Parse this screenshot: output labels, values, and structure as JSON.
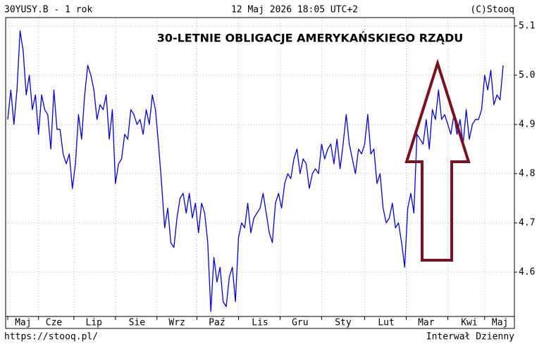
{
  "header": {
    "symbol": "30YUSY.B - 1 rok",
    "datetime": "12 Maj 2026 18:05 UTC+2",
    "copyright": "(C)Stooq"
  },
  "footer": {
    "url": "https://stooq.pl/",
    "interval": "Interwał Dzienny"
  },
  "chart_data": {
    "type": "line",
    "title": "30-LETNIE OBLIGACJE AMERYKAŃSKIEGO RZĄDU",
    "categories": [
      null,
      null,
      null,
      null,
      null,
      "Maj",
      null,
      null,
      null,
      null,
      null,
      null,
      null,
      null,
      null,
      "Cze",
      null,
      null,
      null,
      null,
      null,
      null,
      null,
      null,
      null,
      null,
      null,
      null,
      "Lip",
      null,
      null,
      null,
      null,
      null,
      null,
      null,
      null,
      null,
      null,
      null,
      null,
      null,
      "Sie",
      null,
      null,
      null,
      null,
      null,
      null,
      null,
      null,
      null,
      null,
      null,
      null,
      "Wrz",
      null,
      null,
      null,
      null,
      null,
      null,
      null,
      null,
      null,
      null,
      null,
      null,
      "Paź",
      null,
      null,
      null,
      null,
      null,
      null,
      null,
      null,
      null,
      null,
      null,
      null,
      null,
      "Lis",
      null,
      null,
      null,
      null,
      null,
      null,
      null,
      null,
      null,
      null,
      null,
      null,
      "Gru",
      null,
      null,
      null,
      null,
      null,
      null,
      null,
      null,
      null,
      null,
      null,
      null,
      null,
      "Sty",
      null,
      null,
      null,
      null,
      null,
      null,
      null,
      null,
      null,
      null,
      null,
      null,
      null,
      "Lut",
      null,
      null,
      null,
      null,
      null,
      null,
      null,
      null,
      null,
      null,
      null,
      null,
      "Mar",
      null,
      null,
      null,
      null,
      null,
      null,
      null,
      null,
      null,
      null,
      null,
      null,
      null,
      "Kwi",
      null,
      null,
      null,
      null,
      null,
      null,
      null,
      null,
      null,
      "Maj",
      null
    ],
    "values": [
      4.91,
      4.97,
      4.9,
      4.97,
      5.09,
      5.05,
      4.96,
      5.0,
      4.93,
      4.96,
      4.88,
      4.96,
      4.93,
      4.92,
      4.85,
      4.97,
      4.89,
      4.89,
      4.84,
      4.82,
      4.84,
      4.77,
      4.82,
      4.92,
      4.87,
      4.96,
      5.02,
      5.0,
      4.97,
      4.91,
      4.94,
      4.93,
      4.96,
      4.87,
      4.93,
      4.78,
      4.82,
      4.83,
      4.88,
      4.87,
      4.93,
      4.92,
      4.9,
      4.91,
      4.88,
      4.93,
      4.9,
      4.96,
      4.93,
      4.86,
      4.78,
      4.69,
      4.73,
      4.66,
      4.65,
      4.71,
      4.75,
      4.76,
      4.72,
      4.76,
      4.71,
      4.74,
      4.68,
      4.74,
      4.72,
      4.66,
      4.52,
      4.63,
      4.58,
      4.61,
      4.54,
      4.53,
      4.59,
      4.61,
      4.54,
      4.67,
      4.7,
      4.69,
      4.74,
      4.68,
      4.71,
      4.72,
      4.73,
      4.76,
      4.72,
      4.68,
      4.66,
      4.74,
      4.76,
      4.73,
      4.78,
      4.8,
      4.79,
      4.83,
      4.85,
      4.8,
      4.83,
      4.82,
      4.77,
      4.8,
      4.81,
      4.8,
      4.86,
      4.83,
      4.85,
      4.86,
      4.82,
      4.87,
      4.81,
      4.86,
      4.92,
      4.86,
      4.83,
      4.8,
      4.85,
      4.84,
      4.86,
      4.92,
      4.84,
      4.85,
      4.78,
      4.8,
      4.73,
      4.7,
      4.71,
      4.74,
      4.69,
      4.7,
      4.66,
      4.61,
      4.73,
      4.76,
      4.72,
      4.88,
      4.87,
      4.86,
      4.91,
      4.85,
      4.93,
      4.91,
      4.97,
      4.91,
      4.92,
      4.9,
      4.88,
      4.92,
      4.88,
      4.91,
      4.86,
      4.93,
      4.87,
      4.9,
      4.91,
      4.91,
      4.93,
      5.0,
      4.97,
      5.01,
      4.94,
      4.96,
      4.95,
      5.02
    ],
    "color": "#0000dd",
    "ylim": [
      4.51,
      5.117
    ],
    "yticks": [
      4.6,
      4.7,
      4.8,
      4.9,
      {
        "value": 5,
        "label": "5.0"
      },
      5.1
    ],
    "grid": true
  }
}
